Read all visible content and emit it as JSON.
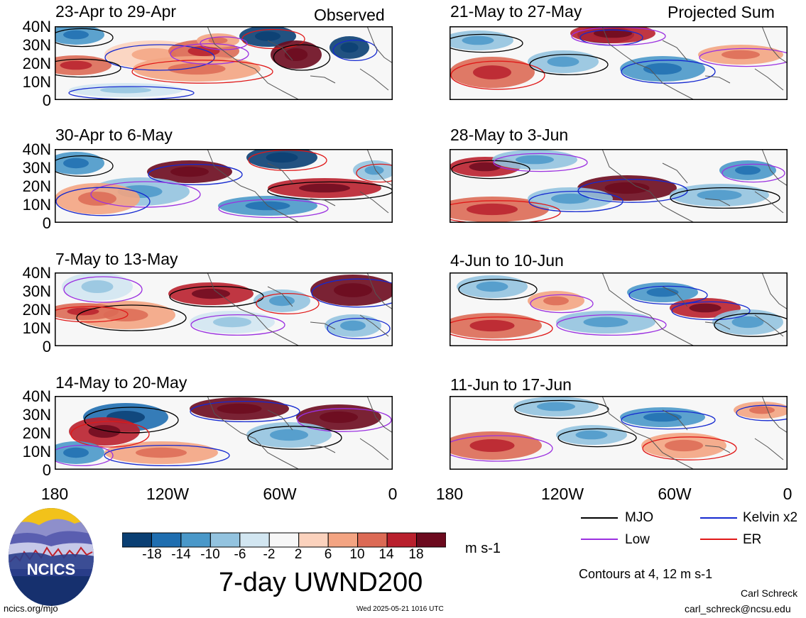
{
  "figure": {
    "title": "7-day UWND200",
    "units": "m s-1",
    "left_header": "Observed",
    "right_header": "Projected Sum"
  },
  "panels_left": [
    {
      "title": "23-Apr to 29-Apr"
    },
    {
      "title": "30-Apr to 6-May"
    },
    {
      "title": "7-May to 13-May"
    },
    {
      "title": "14-May to 20-May"
    }
  ],
  "panels_right": [
    {
      "title": "21-May to 27-May"
    },
    {
      "title": "28-May to 3-Jun"
    },
    {
      "title": "4-Jun to 10-Jun"
    },
    {
      "title": "11-Jun to 17-Jun"
    }
  ],
  "lat_ticks": [
    "40N",
    "30N",
    "20N",
    "10N",
    "0"
  ],
  "lon_ticks": [
    "180",
    "120W",
    "60W",
    "0"
  ],
  "colorbar": {
    "labels": [
      "-18",
      "-14",
      "-10",
      "-6",
      "-2",
      "2",
      "6",
      "10",
      "14",
      "18"
    ],
    "colors": [
      "#0a3f73",
      "#1f6eb0",
      "#4a98c9",
      "#93c3df",
      "#d2e6f1",
      "#f7f7f7",
      "#fbd2bd",
      "#f3a482",
      "#dc6a55",
      "#b9202d",
      "#6c0a1e"
    ]
  },
  "legend": {
    "items": [
      {
        "label": "MJO",
        "color": "#000000"
      },
      {
        "label": "Kelvin x2",
        "color": "#1428d0"
      },
      {
        "label": "Low",
        "color": "#9b30e0"
      },
      {
        "label": "ER",
        "color": "#e01818"
      }
    ],
    "note": "Contours at 4, 12 m s-1"
  },
  "logo": {
    "text": "NCICS"
  },
  "footer": {
    "url": "ncics.org/mjo",
    "timestamp": "Wed 2025-05-21 1016 UTC",
    "author": "Carl Schreck",
    "email": "carl_schreck@ncsu.edu"
  }
}
